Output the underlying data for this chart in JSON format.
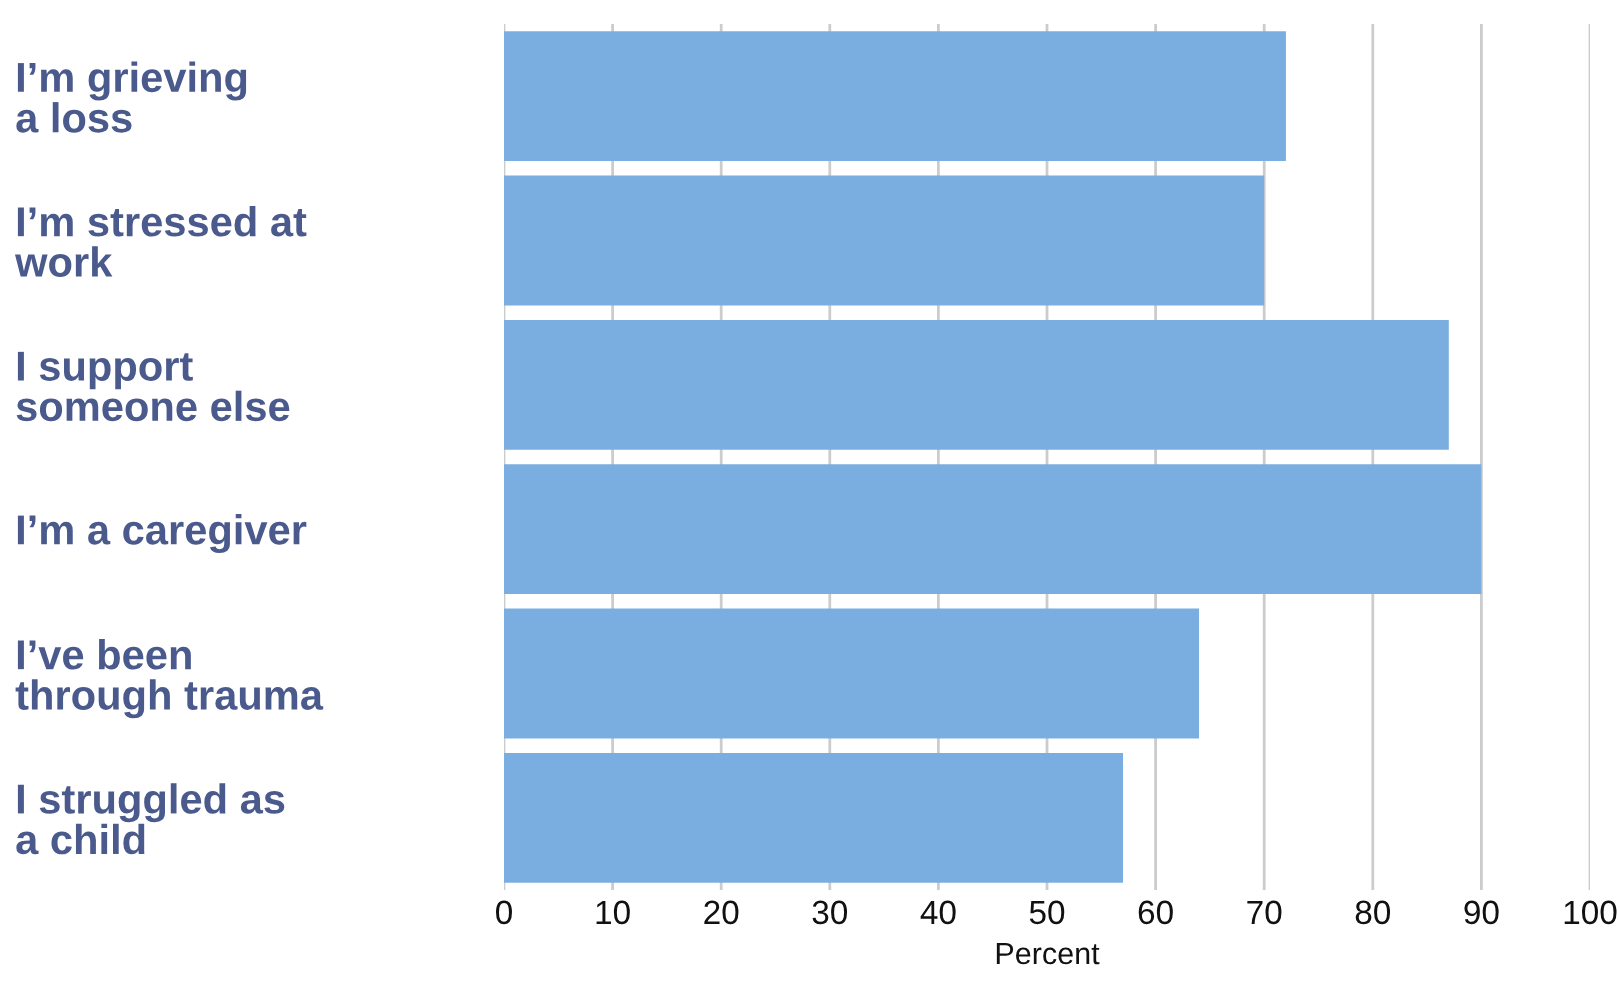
{
  "chart_data": {
    "type": "bar",
    "orientation": "horizontal",
    "categories": [
      "I’m grieving\na loss",
      "I’m stressed at\nwork",
      "I support\nsomeone else",
      "I’m a caregiver",
      "I’ve been\nthrough trauma",
      "I struggled as\na child"
    ],
    "values": [
      72,
      70,
      87,
      90,
      64,
      57
    ],
    "color": "#7aaee0",
    "xlabel": "Percent",
    "xlim": [
      0,
      100
    ],
    "xticks": [
      0,
      10,
      20,
      30,
      40,
      50,
      60,
      70,
      80,
      90,
      100
    ],
    "grid": "x"
  }
}
